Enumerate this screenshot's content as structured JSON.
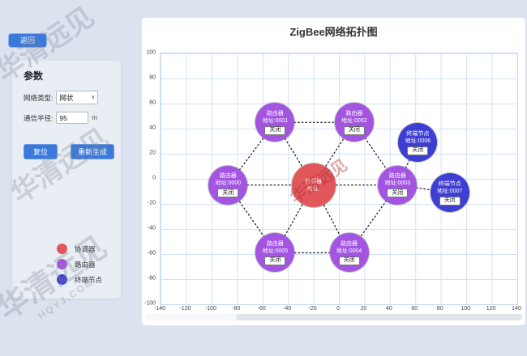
{
  "page": {
    "background": "#dce3ee",
    "watermark_text": "华清远见",
    "watermark_sub": "HQYJ.COM"
  },
  "icons": {
    "chevron_down": "∨"
  },
  "sidebar": {
    "back_button": "返回",
    "panel": {
      "title": "参数",
      "network_type_label": "网络类型:",
      "network_type_value": "网状",
      "radius_label": "通信半径:",
      "radius_value": "95",
      "radius_unit": "m",
      "reset_label": "复位",
      "regenerate_label": "重新生成"
    },
    "legend": [
      {
        "label": "协调器",
        "color": "#e2575a"
      },
      {
        "label": "路由器",
        "color": "#a355e2"
      },
      {
        "label": "终端节点",
        "color": "#3e3ed2"
      }
    ]
  },
  "chart_data": {
    "type": "scatter",
    "title": "ZigBee网络拓扑图",
    "x_range": [
      -140,
      140
    ],
    "y_range": [
      -100,
      100
    ],
    "x_ticks": [
      -140,
      -120,
      -100,
      -80,
      -60,
      -40,
      -20,
      0,
      20,
      40,
      60,
      80,
      100,
      120,
      140
    ],
    "y_ticks": [
      100,
      80,
      60,
      40,
      20,
      0,
      -20,
      -40,
      -60,
      -80,
      -100
    ],
    "grid": true,
    "legend_position": "sidebar-bottom-left",
    "colors": {
      "coordinator": "#e2575a",
      "router": "#a355e2",
      "end_device": "#3e3ed2"
    },
    "nodes": [
      {
        "id": "coordinator",
        "kind": "coordinator",
        "label": "协调器",
        "address": "地址:",
        "x": -20,
        "y": -5,
        "close_label": null
      },
      {
        "id": "router-0000",
        "kind": "router",
        "label": "路由器",
        "address": "地址:0000",
        "x": -87,
        "y": -5,
        "close_label": "关闭"
      },
      {
        "id": "router-0001",
        "kind": "router",
        "label": "路由器",
        "address": "地址:0001",
        "x": -50,
        "y": 45,
        "close_label": "关闭"
      },
      {
        "id": "router-0002",
        "kind": "router",
        "label": "路由器",
        "address": "地址:0002",
        "x": 12,
        "y": 45,
        "close_label": "关闭"
      },
      {
        "id": "router-0003",
        "kind": "router",
        "label": "路由器",
        "address": "地址:0003",
        "x": 46,
        "y": -5,
        "close_label": "关闭"
      },
      {
        "id": "router-0004",
        "kind": "router",
        "label": "路由器",
        "address": "地址:0004",
        "x": 8,
        "y": -59,
        "close_label": "关闭"
      },
      {
        "id": "router-0005",
        "kind": "router",
        "label": "路由器",
        "address": "地址:0005",
        "x": -50,
        "y": -59,
        "close_label": "关闭"
      },
      {
        "id": "end-0006",
        "kind": "end_device",
        "label": "终端节点",
        "address": "地址:0006",
        "x": 62,
        "y": 29,
        "close_label": "关闭"
      },
      {
        "id": "end-0007",
        "kind": "end_device",
        "label": "终端节点",
        "address": "地址:0007",
        "x": 87,
        "y": -11,
        "close_label": "关闭"
      }
    ],
    "edges": [
      [
        "coordinator",
        "router-0000"
      ],
      [
        "coordinator",
        "router-0001"
      ],
      [
        "coordinator",
        "router-0002"
      ],
      [
        "coordinator",
        "router-0003"
      ],
      [
        "coordinator",
        "router-0004"
      ],
      [
        "coordinator",
        "router-0005"
      ],
      [
        "router-0000",
        "router-0001"
      ],
      [
        "router-0001",
        "router-0002"
      ],
      [
        "router-0002",
        "router-0003"
      ],
      [
        "router-0003",
        "router-0004"
      ],
      [
        "router-0004",
        "router-0005"
      ],
      [
        "router-0005",
        "router-0000"
      ],
      [
        "router-0003",
        "end-0006"
      ],
      [
        "router-0003",
        "end-0007"
      ]
    ]
  }
}
